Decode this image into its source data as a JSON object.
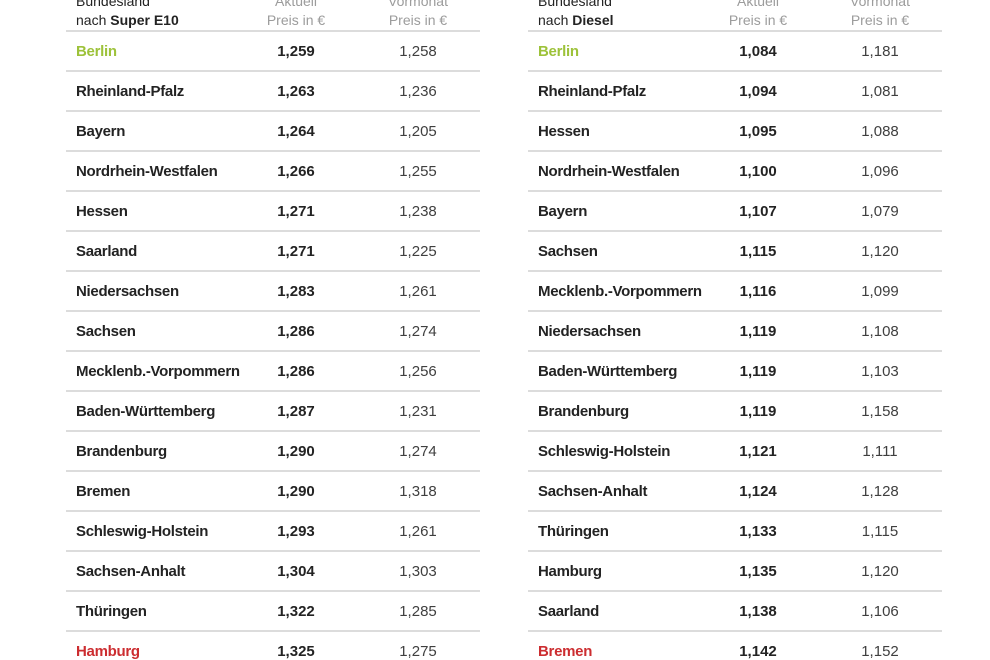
{
  "colors": {
    "green": "#9dc23a",
    "red": "#cc2d30",
    "dark_text": "#232323",
    "prev_text": "#3f3f3f",
    "header_gray": "#9c9c9c",
    "divider": "#dcdcdc",
    "background": "#ffffff"
  },
  "tables": [
    {
      "id": "super-e10",
      "header": {
        "line1": "Bundesland",
        "line2_prefix": "nach ",
        "line2_bold": "Super E10",
        "col_current_line1": "Aktuell",
        "col_current_line2": "Preis in €",
        "col_previous_line1": "Vormonat",
        "col_previous_line2": "Preis in €"
      },
      "rows": [
        {
          "state": "Berlin",
          "current": "1,259",
          "previous": "1,258",
          "highlight": "green"
        },
        {
          "state": "Rheinland-Pfalz",
          "current": "1,263",
          "previous": "1,236"
        },
        {
          "state": "Bayern",
          "current": "1,264",
          "previous": "1,205"
        },
        {
          "state": "Nordrhein-Westfalen",
          "current": "1,266",
          "previous": "1,255"
        },
        {
          "state": "Hessen",
          "current": "1,271",
          "previous": "1,238"
        },
        {
          "state": "Saarland",
          "current": "1,271",
          "previous": "1,225"
        },
        {
          "state": "Niedersachsen",
          "current": "1,283",
          "previous": "1,261"
        },
        {
          "state": "Sachsen",
          "current": "1,286",
          "previous": "1,274"
        },
        {
          "state": "Mecklenb.-Vorpommern",
          "current": "1,286",
          "previous": "1,256"
        },
        {
          "state": "Baden-Württemberg",
          "current": "1,287",
          "previous": "1,231"
        },
        {
          "state": "Brandenburg",
          "current": "1,290",
          "previous": "1,274"
        },
        {
          "state": "Bremen",
          "current": "1,290",
          "previous": "1,318"
        },
        {
          "state": "Schleswig-Holstein",
          "current": "1,293",
          "previous": "1,261"
        },
        {
          "state": "Sachsen-Anhalt",
          "current": "1,304",
          "previous": "1,303"
        },
        {
          "state": "Thüringen",
          "current": "1,322",
          "previous": "1,285"
        },
        {
          "state": "Hamburg",
          "current": "1,325",
          "previous": "1,275",
          "highlight": "red"
        }
      ]
    },
    {
      "id": "diesel",
      "header": {
        "line1": "Bundesland",
        "line2_prefix": "nach ",
        "line2_bold": "Diesel",
        "col_current_line1": "Aktuell",
        "col_current_line2": "Preis in €",
        "col_previous_line1": "Vormonat",
        "col_previous_line2": "Preis in €"
      },
      "rows": [
        {
          "state": "Berlin",
          "current": "1,084",
          "previous": "1,181",
          "highlight": "green"
        },
        {
          "state": "Rheinland-Pfalz",
          "current": "1,094",
          "previous": "1,081"
        },
        {
          "state": "Hessen",
          "current": "1,095",
          "previous": "1,088"
        },
        {
          "state": "Nordrhein-Westfalen",
          "current": "1,100",
          "previous": "1,096"
        },
        {
          "state": "Bayern",
          "current": "1,107",
          "previous": "1,079"
        },
        {
          "state": "Sachsen",
          "current": "1,115",
          "previous": "1,120"
        },
        {
          "state": "Mecklenb.-Vorpommern",
          "current": "1,116",
          "previous": "1,099"
        },
        {
          "state": "Niedersachsen",
          "current": "1,119",
          "previous": "1,108"
        },
        {
          "state": "Baden-Württemberg",
          "current": "1,119",
          "previous": "1,103"
        },
        {
          "state": "Brandenburg",
          "current": "1,119",
          "previous": "1,158"
        },
        {
          "state": "Schleswig-Holstein",
          "current": "1,121",
          "previous": "1,111"
        },
        {
          "state": "Sachsen-Anhalt",
          "current": "1,124",
          "previous": "1,128"
        },
        {
          "state": "Thüringen",
          "current": "1,133",
          "previous": "1,115"
        },
        {
          "state": "Hamburg",
          "current": "1,135",
          "previous": "1,120"
        },
        {
          "state": "Saarland",
          "current": "1,138",
          "previous": "1,106"
        },
        {
          "state": "Bremen",
          "current": "1,142",
          "previous": "1,152",
          "highlight": "red"
        }
      ]
    }
  ],
  "chart_data": [
    {
      "type": "table",
      "title": "Bundesland nach Super E10",
      "columns": [
        "Bundesland",
        "Aktuell Preis in €",
        "Vormonat Preis in €"
      ],
      "rows": [
        [
          "Berlin",
          1.259,
          1.258
        ],
        [
          "Rheinland-Pfalz",
          1.263,
          1.236
        ],
        [
          "Bayern",
          1.264,
          1.205
        ],
        [
          "Nordrhein-Westfalen",
          1.266,
          1.255
        ],
        [
          "Hessen",
          1.271,
          1.238
        ],
        [
          "Saarland",
          1.271,
          1.225
        ],
        [
          "Niedersachsen",
          1.283,
          1.261
        ],
        [
          "Sachsen",
          1.286,
          1.274
        ],
        [
          "Mecklenb.-Vorpommern",
          1.286,
          1.256
        ],
        [
          "Baden-Württemberg",
          1.287,
          1.231
        ],
        [
          "Brandenburg",
          1.29,
          1.274
        ],
        [
          "Bremen",
          1.29,
          1.318
        ],
        [
          "Schleswig-Holstein",
          1.293,
          1.261
        ],
        [
          "Sachsen-Anhalt",
          1.304,
          1.303
        ],
        [
          "Thüringen",
          1.322,
          1.285
        ],
        [
          "Hamburg",
          1.325,
          1.275
        ]
      ],
      "annotations": {
        "cheapest_highlight_green": "Berlin",
        "most_expensive_highlight_red": "Hamburg"
      }
    },
    {
      "type": "table",
      "title": "Bundesland nach Diesel",
      "columns": [
        "Bundesland",
        "Aktuell Preis in €",
        "Vormonat Preis in €"
      ],
      "rows": [
        [
          "Berlin",
          1.084,
          1.181
        ],
        [
          "Rheinland-Pfalz",
          1.094,
          1.081
        ],
        [
          "Hessen",
          1.095,
          1.088
        ],
        [
          "Nordrhein-Westfalen",
          1.1,
          1.096
        ],
        [
          "Bayern",
          1.107,
          1.079
        ],
        [
          "Sachsen",
          1.115,
          1.12
        ],
        [
          "Mecklenb.-Vorpommern",
          1.116,
          1.099
        ],
        [
          "Niedersachsen",
          1.119,
          1.108
        ],
        [
          "Baden-Württemberg",
          1.119,
          1.103
        ],
        [
          "Brandenburg",
          1.119,
          1.158
        ],
        [
          "Schleswig-Holstein",
          1.121,
          1.111
        ],
        [
          "Sachsen-Anhalt",
          1.124,
          1.128
        ],
        [
          "Thüringen",
          1.133,
          1.115
        ],
        [
          "Hamburg",
          1.135,
          1.12
        ],
        [
          "Saarland",
          1.138,
          1.106
        ],
        [
          "Bremen",
          1.142,
          1.152
        ]
      ],
      "annotations": {
        "cheapest_highlight_green": "Berlin",
        "most_expensive_highlight_red": "Bremen"
      }
    }
  ]
}
